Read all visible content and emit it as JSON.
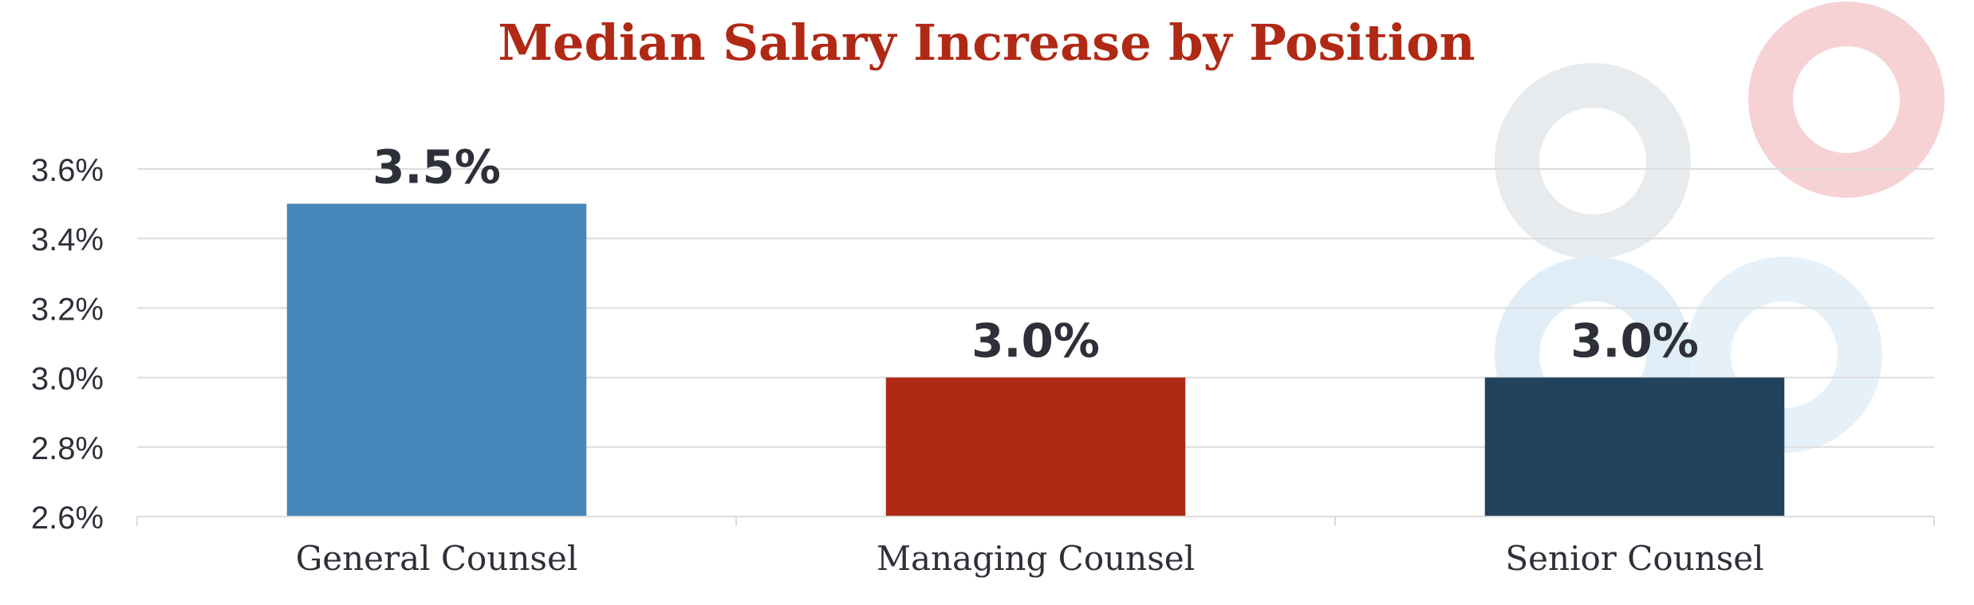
{
  "chart_data": {
    "type": "bar",
    "title": "Median Salary Increase by Position",
    "xlabel": "",
    "ylabel": "",
    "categories": [
      "General Counsel",
      "Managing Counsel",
      "Senior Counsel"
    ],
    "values": [
      3.5,
      3.0,
      3.0
    ],
    "data_labels": [
      "3.5%",
      "3.0%",
      "3.0%"
    ],
    "bar_colors": [
      "#4887BA",
      "#B02915",
      "#23435C"
    ],
    "ylim": [
      2.6,
      3.6
    ],
    "yticks": [
      2.6,
      2.8,
      3.0,
      3.2,
      3.4,
      3.6
    ],
    "ytick_labels": [
      "2.6%",
      "2.8%",
      "3.0%",
      "3.2%",
      "3.4%",
      "3.6%"
    ],
    "grid": true,
    "legend": "none"
  },
  "colors": {
    "title": "#B02915",
    "text": "#2E3039",
    "grid": "#DCDCDC",
    "deco_gray": "#E8EBEE",
    "deco_pink": "#F6D2D5",
    "deco_blue": "#DDEBF5"
  }
}
